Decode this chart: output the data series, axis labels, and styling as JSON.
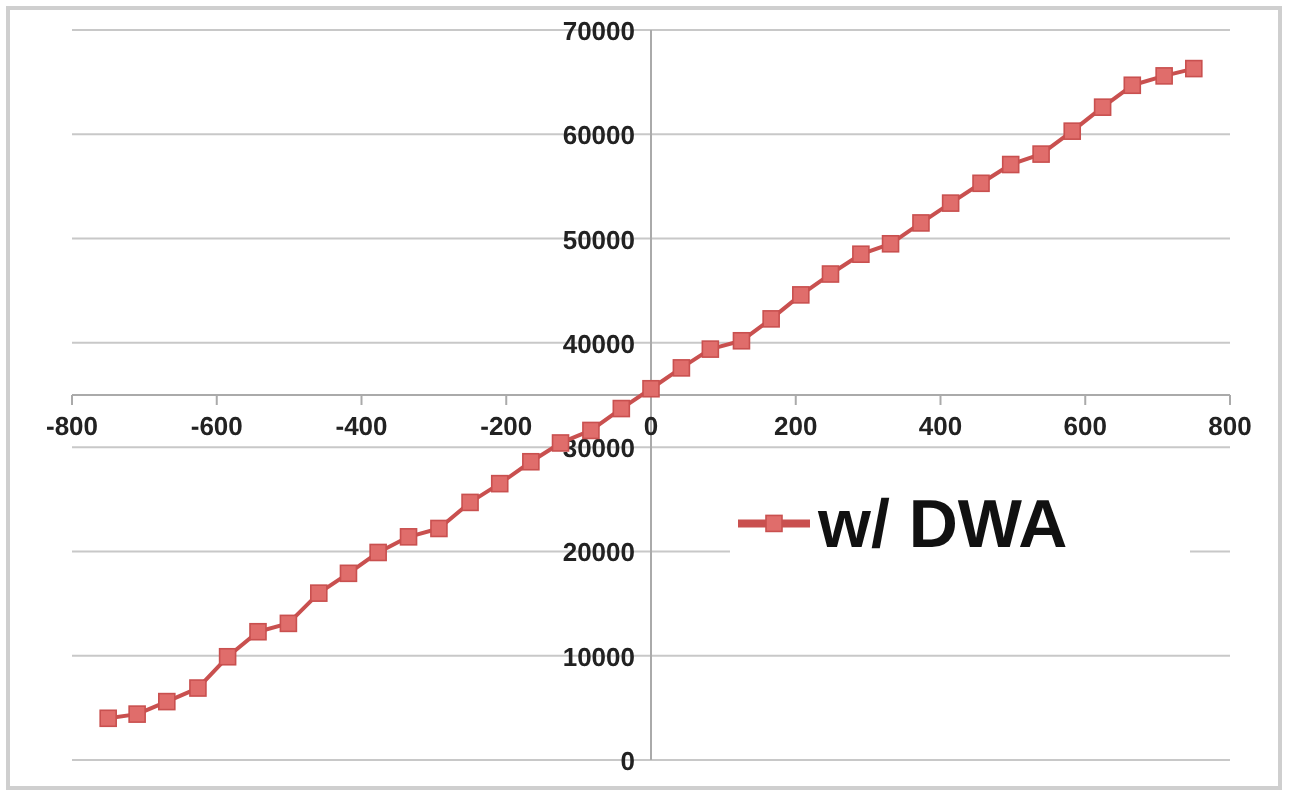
{
  "chart_data": {
    "type": "line",
    "x": [
      -750,
      -710,
      -669,
      -626,
      -585,
      -543,
      -501,
      -459,
      -418,
      -377,
      -335,
      -293,
      -250,
      -209,
      -166,
      -125,
      -83,
      -41,
      0,
      42,
      82,
      125,
      166,
      207,
      248,
      290,
      331,
      373,
      414,
      456,
      497,
      539,
      582,
      624,
      665,
      709,
      750
    ],
    "series": [
      {
        "name": "w/ DWA",
        "color": "#c9504f",
        "values": [
          4000,
          4400,
          5600,
          6900,
          9900,
          12300,
          13100,
          16000,
          17900,
          19900,
          21400,
          22200,
          24700,
          26500,
          28600,
          30400,
          31600,
          33700,
          35600,
          37600,
          39400,
          40200,
          42300,
          44600,
          46600,
          48500,
          49500,
          51500,
          53400,
          55300,
          57100,
          58100,
          60300,
          62600,
          64700,
          65600,
          66300
        ]
      }
    ],
    "xlim": [
      -800,
      800
    ],
    "xticks": [
      -800,
      -600,
      -400,
      -200,
      0,
      200,
      400,
      600,
      800
    ],
    "ylim": [
      0,
      70000
    ],
    "yticks": [
      0,
      10000,
      20000,
      30000,
      40000,
      50000,
      60000,
      70000
    ],
    "grid": "y",
    "legend": "right",
    "marker": "square",
    "line_style": "solid"
  }
}
